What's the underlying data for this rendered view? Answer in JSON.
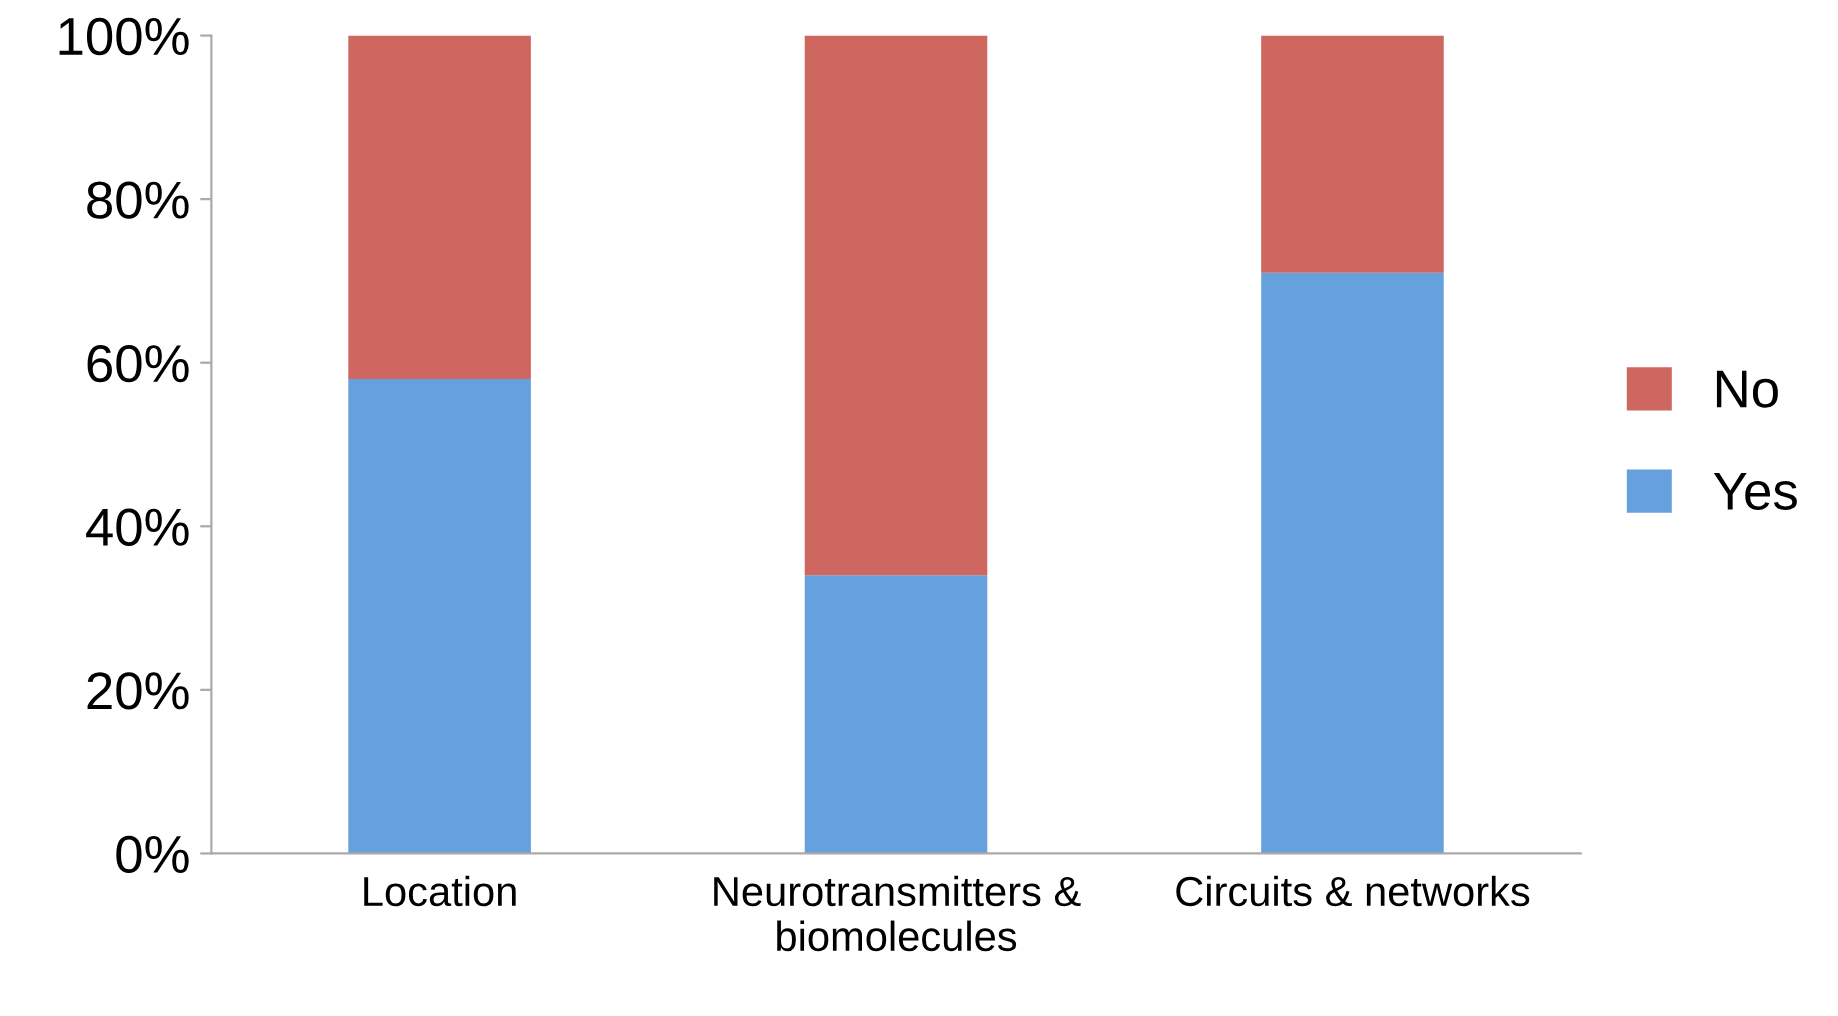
{
  "chart_data": {
    "type": "bar",
    "stacked": true,
    "categories": [
      "Location",
      "Neurotransmitters &\nbiomolecules",
      "Circuits & networks"
    ],
    "series": [
      {
        "name": "Yes",
        "color": "#65a1dd",
        "values": [
          58,
          34,
          71
        ]
      },
      {
        "name": "No",
        "color": "#cd6760",
        "values": [
          42,
          66,
          29
        ]
      }
    ],
    "ylim": [
      0,
      100
    ],
    "yticks": [
      {
        "value": 0,
        "label": "0%"
      },
      {
        "value": 20,
        "label": "20%"
      },
      {
        "value": 40,
        "label": "40%"
      },
      {
        "value": 60,
        "label": "60%"
      },
      {
        "value": 80,
        "label": "80%"
      },
      {
        "value": 100,
        "label": "100%"
      }
    ],
    "grid": false,
    "legend": "right"
  }
}
